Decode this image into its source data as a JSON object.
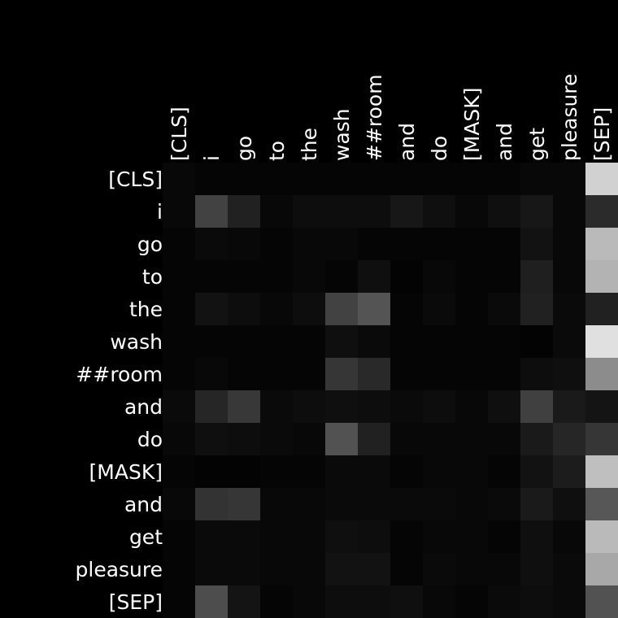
{
  "chart_data": {
    "type": "heatmap",
    "title": "",
    "xlabel": "",
    "ylabel": "",
    "colormap": "grayscale",
    "value_range": [
      0,
      1
    ],
    "x_tokens": [
      "[CLS]",
      "i",
      "go",
      "to",
      "the",
      "wash",
      "##room",
      "and",
      "do",
      "[MASK]",
      "and",
      "get",
      "pleasure",
      "[SEP]"
    ],
    "y_tokens": [
      "[CLS]",
      "i",
      "go",
      "to",
      "the",
      "wash",
      "##room",
      "and",
      "do",
      "[MASK]",
      "and",
      "get",
      "pleasure",
      "[SEP]"
    ],
    "values": [
      [
        0.03,
        0.02,
        0.02,
        0.02,
        0.02,
        0.02,
        0.02,
        0.02,
        0.02,
        0.02,
        0.02,
        0.03,
        0.03,
        0.82
      ],
      [
        0.03,
        0.26,
        0.13,
        0.03,
        0.05,
        0.05,
        0.05,
        0.09,
        0.06,
        0.03,
        0.06,
        0.09,
        0.03,
        0.17
      ],
      [
        0.02,
        0.04,
        0.03,
        0.02,
        0.03,
        0.03,
        0.02,
        0.02,
        0.02,
        0.02,
        0.02,
        0.07,
        0.03,
        0.73
      ],
      [
        0.02,
        0.02,
        0.02,
        0.02,
        0.03,
        0.02,
        0.06,
        0.01,
        0.03,
        0.02,
        0.02,
        0.12,
        0.03,
        0.7
      ],
      [
        0.02,
        0.07,
        0.05,
        0.03,
        0.05,
        0.26,
        0.33,
        0.02,
        0.04,
        0.02,
        0.04,
        0.13,
        0.04,
        0.13
      ],
      [
        0.02,
        0.02,
        0.02,
        0.02,
        0.02,
        0.06,
        0.04,
        0.02,
        0.02,
        0.02,
        0.02,
        0.01,
        0.04,
        0.88
      ],
      [
        0.02,
        0.03,
        0.02,
        0.02,
        0.02,
        0.21,
        0.16,
        0.02,
        0.02,
        0.02,
        0.02,
        0.05,
        0.06,
        0.55
      ],
      [
        0.04,
        0.15,
        0.22,
        0.04,
        0.05,
        0.06,
        0.05,
        0.04,
        0.05,
        0.03,
        0.06,
        0.25,
        0.1,
        0.08
      ],
      [
        0.03,
        0.06,
        0.05,
        0.04,
        0.03,
        0.32,
        0.13,
        0.03,
        0.03,
        0.03,
        0.03,
        0.1,
        0.15,
        0.21
      ],
      [
        0.02,
        0.01,
        0.01,
        0.02,
        0.02,
        0.04,
        0.04,
        0.02,
        0.03,
        0.03,
        0.02,
        0.07,
        0.11,
        0.75
      ],
      [
        0.03,
        0.2,
        0.21,
        0.03,
        0.03,
        0.04,
        0.04,
        0.04,
        0.04,
        0.03,
        0.04,
        0.1,
        0.06,
        0.34
      ],
      [
        0.02,
        0.04,
        0.04,
        0.03,
        0.03,
        0.06,
        0.05,
        0.02,
        0.03,
        0.03,
        0.02,
        0.06,
        0.03,
        0.73
      ],
      [
        0.02,
        0.04,
        0.04,
        0.03,
        0.03,
        0.07,
        0.07,
        0.02,
        0.04,
        0.03,
        0.03,
        0.06,
        0.04,
        0.66
      ],
      [
        0.02,
        0.3,
        0.08,
        0.02,
        0.03,
        0.05,
        0.05,
        0.06,
        0.03,
        0.02,
        0.04,
        0.05,
        0.04,
        0.32
      ]
    ]
  }
}
